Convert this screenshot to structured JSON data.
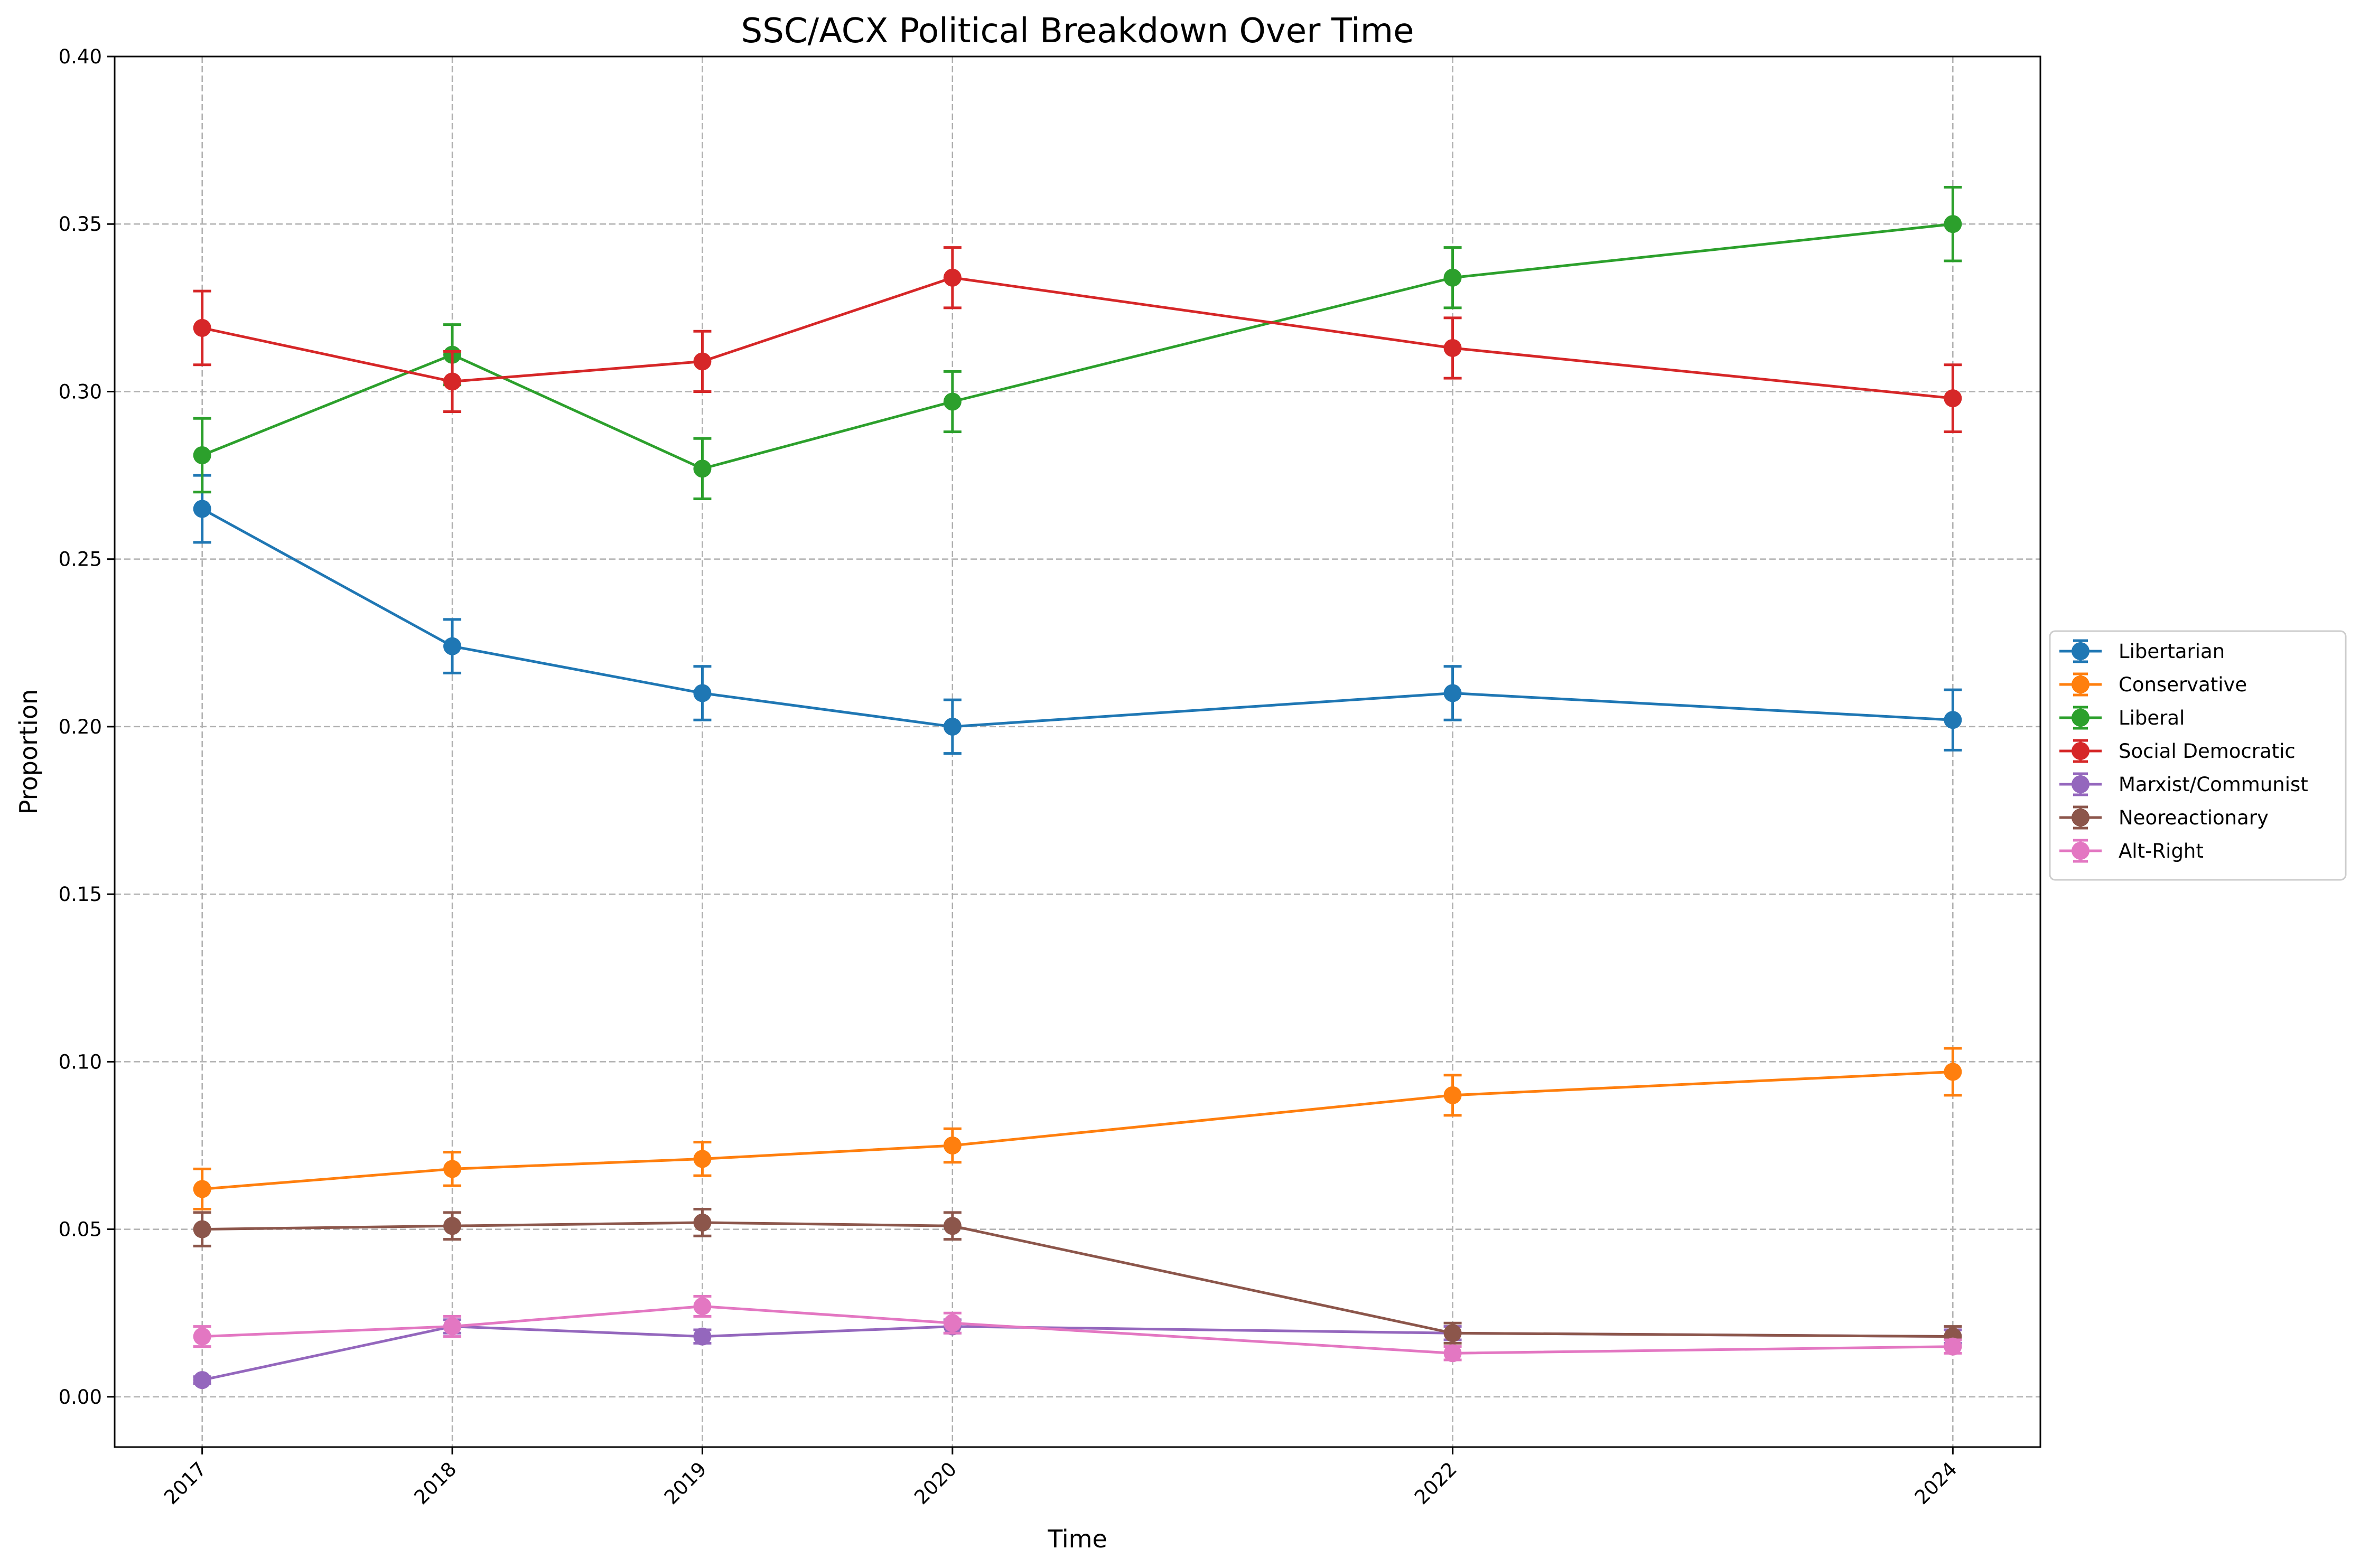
{
  "chart_data": {
    "type": "line",
    "title": "SSC/ACX Political Breakdown Over Time",
    "xlabel": "Time",
    "ylabel": "Proportion",
    "x": [
      2017,
      2018,
      2019,
      2020,
      2022,
      2024
    ],
    "xticks": [
      "2017",
      "2018",
      "2019",
      "2020",
      "2022",
      "2024"
    ],
    "ylim": [
      -0.015,
      0.4
    ],
    "yticks": [
      "0.00",
      "0.05",
      "0.10",
      "0.15",
      "0.20",
      "0.25",
      "0.30",
      "0.35",
      "0.40"
    ],
    "grid": true,
    "legend_position": "right, outside plot",
    "series": [
      {
        "name": "Libertarian",
        "color": "#1f77b4",
        "values": [
          0.265,
          0.224,
          0.21,
          0.2,
          0.21,
          0.202
        ],
        "errors": [
          0.01,
          0.008,
          0.008,
          0.008,
          0.008,
          0.009
        ]
      },
      {
        "name": "Conservative",
        "color": "#ff7f0e",
        "values": [
          0.062,
          0.068,
          0.071,
          0.075,
          0.09,
          0.097
        ],
        "errors": [
          0.006,
          0.005,
          0.005,
          0.005,
          0.006,
          0.007
        ]
      },
      {
        "name": "Liberal",
        "color": "#2ca02c",
        "values": [
          0.281,
          0.311,
          0.277,
          0.297,
          0.334,
          0.35
        ],
        "errors": [
          0.011,
          0.009,
          0.009,
          0.009,
          0.009,
          0.011
        ]
      },
      {
        "name": "Social Democratic",
        "color": "#d62728",
        "values": [
          0.319,
          0.303,
          0.309,
          0.334,
          0.313,
          0.298
        ],
        "errors": [
          0.011,
          0.009,
          0.009,
          0.009,
          0.009,
          0.01
        ]
      },
      {
        "name": "Marxist/Communist",
        "color": "#9467bd",
        "values": [
          0.005,
          0.021,
          0.018,
          0.021,
          0.019,
          0.018
        ],
        "errors": [
          0.001,
          0.002,
          0.002,
          0.002,
          0.002,
          0.002
        ]
      },
      {
        "name": "Neoreactionary",
        "color": "#8c564b",
        "values": [
          0.05,
          0.051,
          0.052,
          0.051,
          0.019,
          0.018
        ],
        "errors": [
          0.005,
          0.004,
          0.004,
          0.004,
          0.003,
          0.003
        ]
      },
      {
        "name": "Alt-Right",
        "color": "#e377c2",
        "values": [
          0.018,
          0.021,
          0.027,
          0.022,
          0.013,
          0.015
        ],
        "errors": [
          0.003,
          0.003,
          0.003,
          0.003,
          0.002,
          0.002
        ]
      }
    ]
  }
}
